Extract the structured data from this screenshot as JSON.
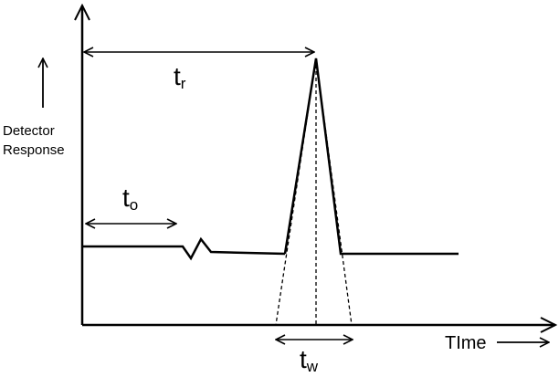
{
  "labels": {
    "retention_time": {
      "main": "t",
      "sub": "r"
    },
    "dead_time": {
      "main": "t",
      "sub": "o"
    },
    "peak_width": {
      "main": "t",
      "sub": "w"
    },
    "y_axis": {
      "line1": "Detector",
      "line2": "Response"
    },
    "x_axis": "TIme"
  },
  "colors": {
    "ink": "#000000",
    "background": "#ffffff"
  }
}
